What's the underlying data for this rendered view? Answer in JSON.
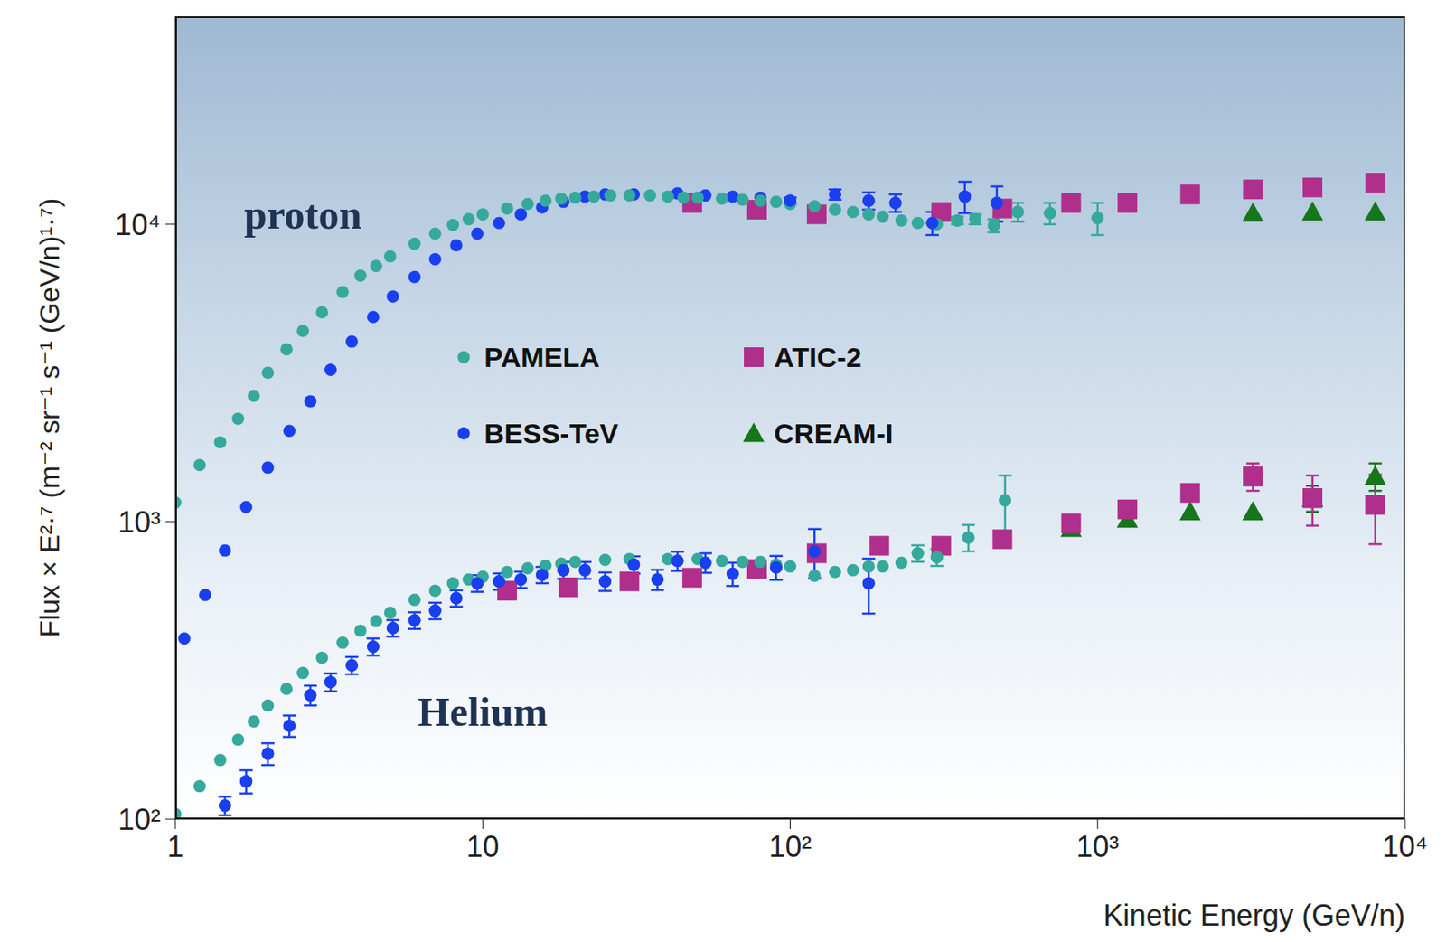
{
  "chart_data": {
    "type": "scatter",
    "x_label": "Kinetic Energy (GeV/n)",
    "y_label": "Flux × E²·⁷ (m⁻² sr⁻¹ s⁻¹ (GeV/n)¹·⁷)",
    "log": true,
    "grid": false,
    "legend": "center",
    "xlim": [
      1,
      10000
    ],
    "ylim": [
      100,
      50000
    ],
    "xticks": [
      1,
      10,
      {
        "value": 100,
        "label": "10²"
      },
      {
        "value": 1000,
        "label": "10³"
      },
      {
        "value": 10000,
        "label": "10⁴"
      }
    ],
    "yticks": [
      {
        "value": 100,
        "label": "10²"
      },
      {
        "value": 1000,
        "label": "10³"
      },
      {
        "value": 10000,
        "label": "10⁴"
      }
    ],
    "annotations": [
      {
        "text": "proton",
        "x": 2.6,
        "y": 10800
      },
      {
        "text": "Helium",
        "x": 10,
        "y": 229
      }
    ],
    "series": [
      {
        "name": "PAMELA",
        "color": "#35a99b",
        "marker": "circle",
        "x": [
          1,
          1.2,
          1.4,
          1.6,
          1.8,
          2,
          2.3,
          2.6,
          3,
          3.5,
          4,
          4.5,
          5,
          6,
          7,
          8,
          9,
          10,
          12,
          14,
          16,
          18,
          20,
          23,
          26,
          30,
          35,
          40,
          45,
          50,
          60,
          70,
          80,
          90,
          100,
          120,
          140,
          160,
          180,
          200,
          230,
          260,
          300,
          350,
          400,
          460,
          550,
          700,
          1000,
          1,
          1.2,
          1.4,
          1.6,
          1.8,
          2,
          2.3,
          2.6,
          3,
          3.5,
          4,
          4.5,
          5,
          6,
          7,
          8,
          9,
          10,
          12,
          14,
          16,
          18,
          20,
          25,
          30,
          40,
          50,
          60,
          70,
          80,
          90,
          100,
          120,
          140,
          160,
          180,
          200,
          230,
          260,
          300,
          380,
          500
        ],
        "values": [
          1160,
          1550,
          1850,
          2220,
          2650,
          3170,
          3800,
          4380,
          5060,
          5920,
          6720,
          7240,
          7800,
          8600,
          9300,
          9950,
          10400,
          10800,
          11300,
          11700,
          12000,
          12200,
          12300,
          12400,
          12500,
          12500,
          12500,
          12400,
          12300,
          12300,
          12200,
          12100,
          12000,
          11900,
          11700,
          11500,
          11200,
          11000,
          10800,
          10600,
          10300,
          10100,
          10000,
          10300,
          10400,
          9900,
          11000,
          10900,
          10500,
          104,
          129,
          158,
          185,
          213,
          241,
          274,
          310,
          349,
          392,
          430,
          463,
          494,
          546,
          586,
          621,
          639,
          653,
          678,
          697,
          712,
          723,
          733,
          744,
          749,
          749,
          749,
          738,
          733,
          733,
          717,
          707,
          658,
          678,
          687,
          707,
          707,
          728,
          783,
          760,
          885,
          1180
        ],
        "errors": [
          null,
          null,
          null,
          null,
          null,
          null,
          null,
          null,
          null,
          null,
          null,
          null,
          null,
          null,
          null,
          null,
          null,
          null,
          null,
          null,
          null,
          null,
          null,
          null,
          null,
          null,
          null,
          null,
          null,
          null,
          null,
          null,
          null,
          null,
          null,
          null,
          null,
          null,
          null,
          null,
          null,
          null,
          null,
          300,
          400,
          500,
          800,
          900,
          1300,
          null,
          null,
          null,
          null,
          null,
          null,
          null,
          null,
          null,
          null,
          null,
          null,
          null,
          null,
          null,
          null,
          null,
          null,
          null,
          null,
          null,
          null,
          null,
          null,
          null,
          null,
          null,
          null,
          null,
          null,
          null,
          null,
          null,
          null,
          null,
          null,
          null,
          null,
          50,
          50,
          90,
          250
        ]
      },
      {
        "name": "BESS-TeV",
        "color": "#1a3ff0",
        "marker": "circle",
        "x": [
          1.07,
          1.25,
          1.45,
          1.7,
          2,
          2.35,
          2.75,
          3.2,
          3.75,
          4.4,
          5.1,
          6,
          7,
          8.2,
          9.6,
          11.3,
          13.3,
          15.6,
          18.3,
          21.5,
          25,
          31,
          43,
          53,
          65,
          80,
          100,
          140,
          180,
          220,
          290,
          370,
          470,
          1.45,
          1.7,
          2,
          2.35,
          2.75,
          3.2,
          3.75,
          4.4,
          5.1,
          6,
          7,
          8.2,
          9.6,
          11.3,
          13.3,
          15.6,
          18.3,
          21.5,
          25,
          31,
          37,
          43,
          53,
          65,
          90,
          120,
          180
        ],
        "values": [
          405,
          567,
          800,
          1120,
          1520,
          2020,
          2540,
          3240,
          4030,
          4880,
          5720,
          6650,
          7630,
          8500,
          9300,
          10100,
          10800,
          11400,
          11900,
          12400,
          12600,
          12600,
          12700,
          12500,
          12400,
          12300,
          12000,
          12600,
          12000,
          11800,
          10100,
          12400,
          11800,
          111,
          134,
          166,
          206,
          261,
          289,
          329,
          380,
          439,
          466,
          502,
          553,
          621,
          630,
          639,
          663,
          687,
          687,
          630,
          717,
          639,
          738,
          728,
          668,
          702,
          795,
          621
        ],
        "errors": [
          null,
          null,
          null,
          null,
          null,
          null,
          null,
          null,
          null,
          null,
          null,
          null,
          null,
          null,
          null,
          null,
          null,
          null,
          null,
          null,
          null,
          null,
          null,
          null,
          null,
          null,
          300,
          500,
          800,
          800,
          900,
          1500,
          1600,
          8,
          12,
          14,
          17,
          20,
          20,
          22,
          25,
          28,
          30,
          32,
          35,
          40,
          40,
          40,
          42,
          45,
          45,
          45,
          48,
          50,
          55,
          55,
          60,
          65,
          150,
          130
        ]
      },
      {
        "name": "ATIC-2",
        "color": "#b02f8c",
        "marker": "square",
        "x": [
          48,
          78,
          122,
          310,
          490,
          820,
          1250,
          2000,
          3200,
          5000,
          8000,
          12,
          19,
          30,
          48,
          78,
          122,
          195,
          310,
          490,
          820,
          1250,
          2000,
          3200,
          5000,
          8000
        ],
        "values": [
          11800,
          11200,
          10800,
          11000,
          11300,
          11800,
          11800,
          12600,
          13100,
          13300,
          13800,
          586,
          602,
          630,
          648,
          693,
          783,
          830,
          830,
          873,
          986,
          1100,
          1250,
          1420,
          1200,
          1140
        ],
        "errors": [
          null,
          null,
          null,
          null,
          null,
          null,
          null,
          null,
          null,
          null,
          null,
          null,
          null,
          null,
          null,
          null,
          null,
          null,
          null,
          null,
          null,
          null,
          null,
          150,
          230,
          300
        ]
      },
      {
        "name": "CREAM-I",
        "color": "#16761a",
        "marker": "triangle",
        "x": [
          3200,
          5000,
          8000,
          820,
          1250,
          2000,
          3200,
          5000,
          8000
        ],
        "values": [
          10900,
          11000,
          11000,
          950,
          1020,
          1080,
          1080,
          1200,
          1420
        ],
        "errors": [
          null,
          null,
          null,
          null,
          null,
          null,
          null,
          120,
          150
        ]
      }
    ]
  }
}
